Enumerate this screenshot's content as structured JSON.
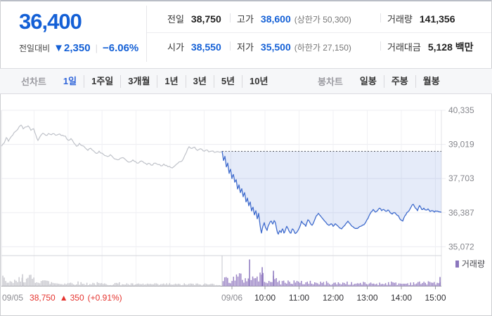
{
  "quote": {
    "price": "36,400",
    "change_label": "전일대비",
    "change_arrow": "▼",
    "change_value": "2,350",
    "change_percent": "−6.06%"
  },
  "stats": {
    "prev": {
      "label": "전일",
      "value": "38,750"
    },
    "high": {
      "label": "고가",
      "value": "38,600",
      "extra": "(상한가 50,300)"
    },
    "volume": {
      "label": "거래량",
      "value": "141,356"
    },
    "open": {
      "label": "시가",
      "value": "38,550"
    },
    "low": {
      "label": "저가",
      "value": "35,500",
      "extra": "(하한가 27,150)"
    },
    "amount": {
      "label": "거래대금",
      "value": "5,128 백만"
    }
  },
  "toolbar": {
    "line_group_label": "선차트",
    "line_tabs": [
      "1일",
      "1주일",
      "3개월",
      "1년",
      "3년",
      "5년",
      "10년"
    ],
    "active_line_tab": "1일",
    "candle_group_label": "봉차트",
    "candle_tabs": [
      "일봉",
      "주봉",
      "월봉"
    ]
  },
  "footer": {
    "prev_date": "09/05",
    "prev_close": "38,750",
    "prev_arrow": "▲",
    "prev_change": "350",
    "prev_percent": "(+0.91%)",
    "cur_date": "09/06"
  },
  "volume_legend": "거래량",
  "chart_data": {
    "type": "line",
    "y_axis": {
      "tick_values": [
        40335,
        39019,
        37703,
        36387,
        35072
      ],
      "tick_labels": [
        "40,335",
        "39,019",
        "37,703",
        "36,387",
        "35,072"
      ]
    },
    "x_axis": {
      "day_labels": [
        "09/05",
        "09/06"
      ],
      "time_labels": [
        "10:00",
        "11:00",
        "12:00",
        "13:00",
        "14:00",
        "15:00"
      ]
    },
    "prev_close": 38750,
    "colors": {
      "prev_line": "#bfc2c9",
      "cur_line": "#3f6bcd",
      "cur_fill": "rgba(82,124,214,0.15)",
      "prev_close_dotted": "#52555e",
      "vol_prev": "#c9c9cf",
      "vol_cur": "#9c86c6",
      "up_red": "#e5332e",
      "down_blue": "#1460d6"
    },
    "series": [
      {
        "name": "09/05",
        "points": [
          [
            2,
            38950
          ],
          [
            6,
            39080
          ],
          [
            9,
            39280
          ],
          [
            12,
            39140
          ],
          [
            16,
            39320
          ],
          [
            20,
            39470
          ],
          [
            24,
            39560
          ],
          [
            27,
            39690
          ],
          [
            30,
            39760
          ],
          [
            33,
            39620
          ],
          [
            36,
            39690
          ],
          [
            40,
            39730
          ],
          [
            44,
            39560
          ],
          [
            48,
            39620
          ],
          [
            51,
            39380
          ],
          [
            54,
            39170
          ],
          [
            57,
            39320
          ],
          [
            61,
            39450
          ],
          [
            65,
            39370
          ],
          [
            69,
            39440
          ],
          [
            73,
            39390
          ],
          [
            77,
            39430
          ],
          [
            81,
            39380
          ],
          [
            85,
            39420
          ],
          [
            89,
            39370
          ],
          [
            93,
            39340
          ],
          [
            97,
            39180
          ],
          [
            101,
            39240
          ],
          [
            105,
            39080
          ],
          [
            109,
            38950
          ],
          [
            113,
            39060
          ],
          [
            117,
            38970
          ],
          [
            121,
            38890
          ],
          [
            125,
            38790
          ],
          [
            129,
            38870
          ],
          [
            133,
            38770
          ],
          [
            137,
            38670
          ],
          [
            141,
            38760
          ],
          [
            145,
            38680
          ],
          [
            149,
            38590
          ],
          [
            153,
            38550
          ],
          [
            157,
            38620
          ],
          [
            161,
            38510
          ],
          [
            165,
            38450
          ],
          [
            169,
            38430
          ],
          [
            173,
            38500
          ],
          [
            177,
            38470
          ],
          [
            181,
            38370
          ],
          [
            185,
            38340
          ],
          [
            189,
            38420
          ],
          [
            193,
            38350
          ],
          [
            197,
            38300
          ],
          [
            201,
            38380
          ],
          [
            205,
            38310
          ],
          [
            209,
            38240
          ],
          [
            213,
            38280
          ],
          [
            217,
            38220
          ],
          [
            221,
            38300
          ],
          [
            225,
            38240
          ],
          [
            229,
            38190
          ],
          [
            233,
            38260
          ],
          [
            237,
            38210
          ],
          [
            241,
            38170
          ],
          [
            245,
            38110
          ],
          [
            249,
            38200
          ],
          [
            253,
            38290
          ],
          [
            257,
            38350
          ],
          [
            261,
            38470
          ],
          [
            265,
            38700
          ],
          [
            269,
            38930
          ],
          [
            273,
            38860
          ],
          [
            277,
            38910
          ],
          [
            281,
            38790
          ],
          [
            285,
            38850
          ],
          [
            289,
            38770
          ],
          [
            293,
            38800
          ],
          [
            297,
            38730
          ],
          [
            301,
            38760
          ],
          [
            305,
            38710
          ],
          [
            309,
            38740
          ],
          [
            312,
            38720
          ],
          [
            316,
            38750
          ]
        ]
      },
      {
        "name": "09/06",
        "points": [
          [
            316,
            38750
          ],
          [
            318,
            38400
          ],
          [
            320,
            38560
          ],
          [
            322,
            38150
          ],
          [
            324,
            38300
          ],
          [
            326,
            37900
          ],
          [
            328,
            38060
          ],
          [
            330,
            37700
          ],
          [
            332,
            37860
          ],
          [
            334,
            37560
          ],
          [
            336,
            37660
          ],
          [
            338,
            37300
          ],
          [
            340,
            37460
          ],
          [
            342,
            37160
          ],
          [
            344,
            37310
          ],
          [
            346,
            37000
          ],
          [
            348,
            37160
          ],
          [
            350,
            36800
          ],
          [
            352,
            36950
          ],
          [
            354,
            36650
          ],
          [
            356,
            36800
          ],
          [
            358,
            36450
          ],
          [
            360,
            36600
          ],
          [
            362,
            36300
          ],
          [
            364,
            36460
          ],
          [
            366,
            36150
          ],
          [
            368,
            36360
          ],
          [
            370,
            35900
          ],
          [
            372,
            35600
          ],
          [
            374,
            35860
          ],
          [
            376,
            36000
          ],
          [
            378,
            35800
          ],
          [
            380,
            35700
          ],
          [
            382,
            35900
          ],
          [
            384,
            36010
          ],
          [
            386,
            36060
          ],
          [
            388,
            35950
          ],
          [
            390,
            36080
          ],
          [
            392,
            35980
          ],
          [
            394,
            35700
          ],
          [
            396,
            35560
          ],
          [
            398,
            35690
          ],
          [
            400,
            35620
          ],
          [
            402,
            35760
          ],
          [
            404,
            35600
          ],
          [
            406,
            35710
          ],
          [
            408,
            35860
          ],
          [
            410,
            35760
          ],
          [
            412,
            35650
          ],
          [
            414,
            35600
          ],
          [
            416,
            35760
          ],
          [
            418,
            35700
          ],
          [
            420,
            35580
          ],
          [
            423,
            35660
          ],
          [
            426,
            35810
          ],
          [
            429,
            36060
          ],
          [
            432,
            35950
          ],
          [
            435,
            35860
          ],
          [
            438,
            36110
          ],
          [
            441,
            36000
          ],
          [
            444,
            35900
          ],
          [
            447,
            36060
          ],
          [
            450,
            36260
          ],
          [
            453,
            36360
          ],
          [
            456,
            36260
          ],
          [
            459,
            36160
          ],
          [
            462,
            36060
          ],
          [
            465,
            35960
          ],
          [
            468,
            35900
          ],
          [
            471,
            35960
          ],
          [
            474,
            35860
          ],
          [
            477,
            35960
          ],
          [
            480,
            35890
          ],
          [
            483,
            35800
          ],
          [
            486,
            35760
          ],
          [
            489,
            35860
          ],
          [
            492,
            35960
          ],
          [
            495,
            36060
          ],
          [
            498,
            35960
          ],
          [
            501,
            35860
          ],
          [
            504,
            35800
          ],
          [
            507,
            35780
          ],
          [
            510,
            35810
          ],
          [
            513,
            35860
          ],
          [
            516,
            35910
          ],
          [
            519,
            35960
          ],
          [
            522,
            36110
          ],
          [
            525,
            36260
          ],
          [
            528,
            36410
          ],
          [
            531,
            36510
          ],
          [
            534,
            36410
          ],
          [
            537,
            36460
          ],
          [
            540,
            36560
          ],
          [
            543,
            36460
          ],
          [
            546,
            36510
          ],
          [
            549,
            36440
          ],
          [
            552,
            36490
          ],
          [
            555,
            36390
          ],
          [
            558,
            36330
          ],
          [
            561,
            36390
          ],
          [
            564,
            36310
          ],
          [
            567,
            36260
          ],
          [
            570,
            36110
          ],
          [
            573,
            36060
          ],
          [
            576,
            36260
          ],
          [
            579,
            36390
          ],
          [
            582,
            36460
          ],
          [
            585,
            36610
          ],
          [
            588,
            36710
          ],
          [
            591,
            36560
          ],
          [
            594,
            36460
          ],
          [
            597,
            36660
          ],
          [
            600,
            36510
          ],
          [
            603,
            36560
          ],
          [
            606,
            36490
          ],
          [
            609,
            36530
          ],
          [
            612,
            36430
          ],
          [
            615,
            36460
          ],
          [
            618,
            36410
          ],
          [
            621,
            36440
          ],
          [
            624,
            36420
          ],
          [
            628,
            36400
          ]
        ]
      }
    ],
    "volume": {
      "profile_prev": [
        [
          4,
          11
        ],
        [
          8,
          7
        ],
        [
          14,
          5
        ],
        [
          20,
          6
        ],
        [
          26,
          8
        ],
        [
          32,
          16
        ],
        [
          38,
          9
        ],
        [
          45,
          12
        ],
        [
          52,
          8
        ],
        [
          58,
          11
        ],
        [
          66,
          6
        ],
        [
          74,
          5
        ],
        [
          84,
          4
        ],
        [
          95,
          4
        ],
        [
          108,
          5
        ],
        [
          120,
          3.5
        ],
        [
          135,
          4
        ],
        [
          150,
          3
        ],
        [
          165,
          4
        ],
        [
          180,
          3
        ],
        [
          195,
          2.5
        ],
        [
          210,
          3
        ],
        [
          225,
          2.5
        ],
        [
          240,
          3
        ],
        [
          255,
          2.5
        ],
        [
          270,
          3
        ],
        [
          285,
          2.5
        ],
        [
          300,
          3
        ],
        [
          314,
          3
        ]
      ],
      "profile_current": [
        [
          318,
          9
        ],
        [
          324,
          10
        ],
        [
          330,
          11
        ],
        [
          336,
          12
        ],
        [
          342,
          13
        ],
        [
          348,
          10
        ],
        [
          352,
          11
        ],
        [
          356,
          14
        ],
        [
          360,
          11
        ],
        [
          366,
          13
        ],
        [
          370,
          15
        ],
        [
          374,
          13
        ],
        [
          378,
          12
        ],
        [
          382,
          10
        ],
        [
          386,
          9
        ],
        [
          390,
          10
        ],
        [
          394,
          8
        ],
        [
          400,
          6
        ],
        [
          408,
          6
        ],
        [
          416,
          7
        ],
        [
          424,
          5
        ],
        [
          432,
          5
        ],
        [
          442,
          6
        ],
        [
          452,
          4
        ],
        [
          462,
          5
        ],
        [
          472,
          4
        ],
        [
          482,
          4
        ],
        [
          492,
          5
        ],
        [
          502,
          3.5
        ],
        [
          512,
          4
        ],
        [
          522,
          4
        ],
        [
          532,
          4
        ],
        [
          542,
          3.5
        ],
        [
          552,
          5
        ],
        [
          562,
          4
        ],
        [
          572,
          3.5
        ],
        [
          582,
          4
        ],
        [
          592,
          5
        ],
        [
          602,
          4
        ],
        [
          610,
          7
        ],
        [
          616,
          5
        ],
        [
          622,
          4
        ],
        [
          627,
          4
        ]
      ],
      "spikes": [
        [
          32,
          17
        ],
        [
          355,
          38
        ],
        [
          373,
          27
        ],
        [
          389,
          22
        ],
        [
          626,
          13
        ]
      ]
    }
  }
}
